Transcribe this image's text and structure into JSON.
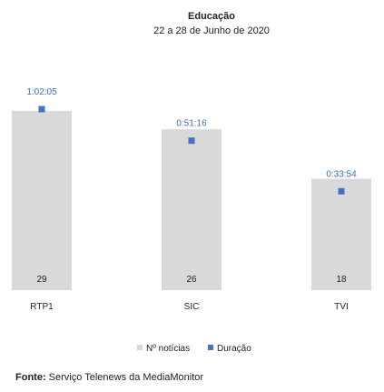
{
  "chart_data": {
    "type": "bar",
    "title": "Educação",
    "subtitle": "22 a 28 de Junho de 2020",
    "categories": [
      "RTP1",
      "SIC",
      "TVI"
    ],
    "series": [
      {
        "name": "Nº notícias",
        "values": [
          29,
          26,
          18
        ],
        "color": "#d9d9d9"
      },
      {
        "name": "Duração",
        "values": [
          "1:02:05",
          "0:51:16",
          "0:33:54"
        ],
        "color": "#4472c4",
        "marker": "square"
      }
    ],
    "legend_position": "bottom",
    "grid": false
  },
  "source": {
    "label": "Fonte:",
    "text": "Serviço Telenews da MediaMonitor"
  }
}
